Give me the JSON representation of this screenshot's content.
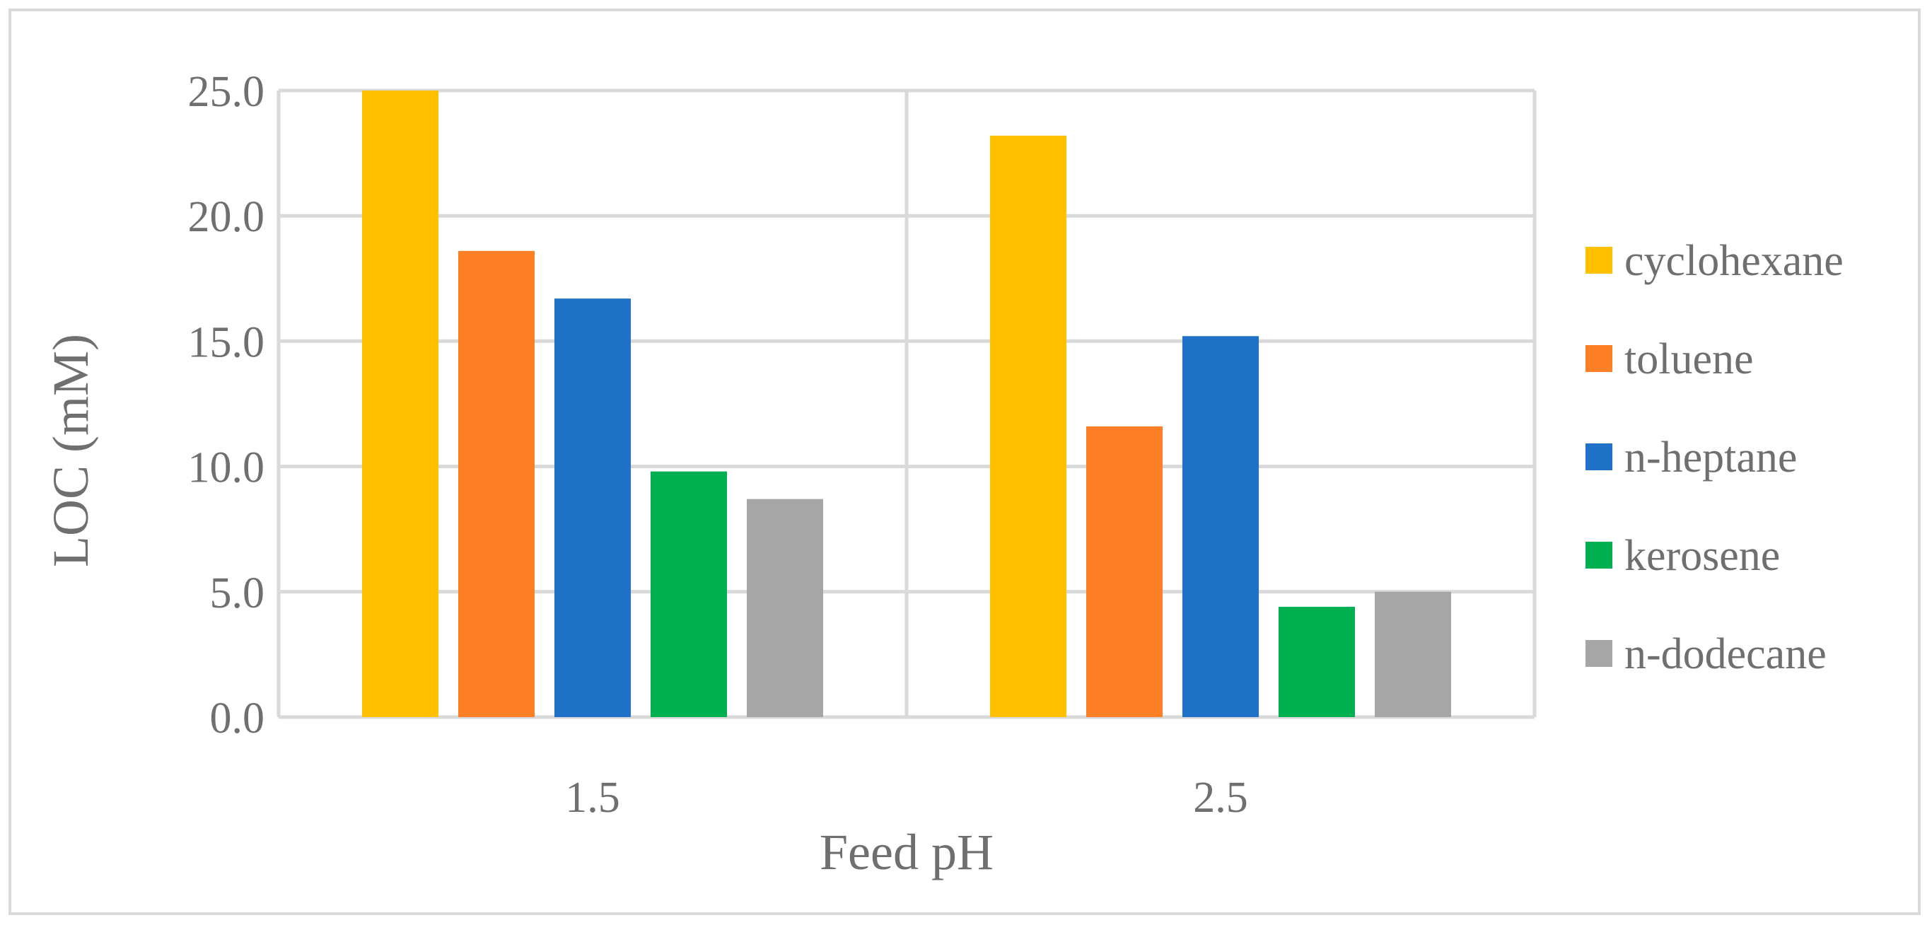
{
  "chart_data": {
    "type": "bar",
    "categories": [
      "1.5",
      "2.5"
    ],
    "series": [
      {
        "name": "cyclohexane",
        "values": [
          25.0,
          23.2
        ],
        "color": "#FFC000"
      },
      {
        "name": "toluene",
        "values": [
          18.6,
          11.6
        ],
        "color": "#FF7F27"
      },
      {
        "name": "n-heptane",
        "values": [
          16.7,
          15.2
        ],
        "color": "#1F72C8"
      },
      {
        "name": "kerosene",
        "values": [
          9.8,
          4.4
        ],
        "color": "#00B050"
      },
      {
        "name": "n-dodecane",
        "values": [
          8.7,
          5.0
        ],
        "color": "#A6A6A6"
      }
    ],
    "title": "",
    "xlabel": "Feed pH",
    "ylabel": "LOC (mM)",
    "ylim": [
      0,
      25
    ],
    "yticks": [
      "0.0",
      "5.0",
      "10.0",
      "15.0",
      "20.0",
      "25.0"
    ],
    "grid": true,
    "legend_position": "right",
    "gridline_color": "#D9D9D9"
  }
}
